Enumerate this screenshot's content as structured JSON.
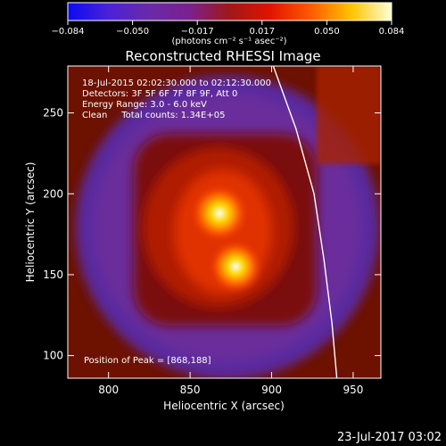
{
  "chart_data": {
    "type": "heatmap",
    "title": "Reconstructed RHESSI Image",
    "xlabel": "Heliocentric X (arcsec)",
    "ylabel": "Heliocentric Y (arcsec)",
    "xlim": [
      775,
      967
    ],
    "ylim": [
      86,
      279
    ],
    "x_ticks": [
      800,
      850,
      900,
      950
    ],
    "y_ticks": [
      100,
      150,
      200,
      250
    ],
    "colorbar": {
      "min": -0.084,
      "max": 0.084,
      "ticks": [
        "−0.084",
        "−0.050",
        "−0.017",
        "0.017",
        "0.050",
        "0.084"
      ],
      "units_label": "(photons cm⁻² s⁻¹ asec⁻²)",
      "colors": [
        "#0b0bf0",
        "#4a22d8",
        "#6a2aa8",
        "#7a2090",
        "#a01818",
        "#e01400",
        "#ff5a00",
        "#ffc300",
        "#ffffd8"
      ]
    },
    "annotations": [
      "18-Jul-2015 02:02:30.000 to 02:12:30.000",
      "Detectors: 3F 5F 6F 7F 8F 9F, Att 0",
      "Energy Range: 3.0 - 6.0 keV",
      "Clean     Total counts: 1.34E+05"
    ],
    "peak_label": "Position of Peak = [868,188]",
    "sources": [
      {
        "x": 868,
        "y": 188,
        "value": 0.084
      },
      {
        "x": 878,
        "y": 155,
        "value": 0.078
      }
    ],
    "limb_curve": [
      [
        901,
        279
      ],
      [
        915,
        240
      ],
      [
        926,
        200
      ],
      [
        932,
        160
      ],
      [
        937,
        120
      ],
      [
        940,
        86
      ]
    ]
  },
  "footer_date": "23-Jul-2017 03:02"
}
